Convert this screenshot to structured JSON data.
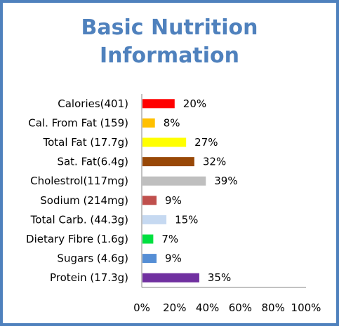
{
  "chart_data": {
    "type": "bar",
    "orientation": "horizontal",
    "title_lines": [
      "Basic Nutrition",
      "Information"
    ],
    "categories": [
      "Calories(401)",
      "Cal. From Fat (159)",
      "Total Fat (17.7g)",
      "Sat. Fat(6.4g)",
      "Cholestrol(117mg)",
      "Sodium (214mg)",
      "Total Carb. (44.3g)",
      "Dietary Fibre (1.6g)",
      "Sugars (4.6g)",
      "Protein (17.3g)"
    ],
    "values": [
      20,
      8,
      27,
      32,
      39,
      9,
      15,
      7,
      9,
      35
    ],
    "value_labels": [
      "20%",
      "8%",
      "27%",
      "32%",
      "39%",
      "9%",
      "15%",
      "7%",
      "9%",
      "35%"
    ],
    "colors": [
      "#ff0000",
      "#ffc000",
      "#ffff00",
      "#984807",
      "#bfbfbf",
      "#c0504d",
      "#c6d9f1",
      "#00e040",
      "#558ed5",
      "#7030a0"
    ],
    "xlim": [
      0,
      100
    ],
    "x_ticks": [
      0,
      20,
      40,
      60,
      80,
      100
    ],
    "x_tick_labels": [
      "0%",
      "20%",
      "40%",
      "60%",
      "80%",
      "100%"
    ],
    "grid": false,
    "legend": "none",
    "accent_color": "#4f81bd"
  }
}
